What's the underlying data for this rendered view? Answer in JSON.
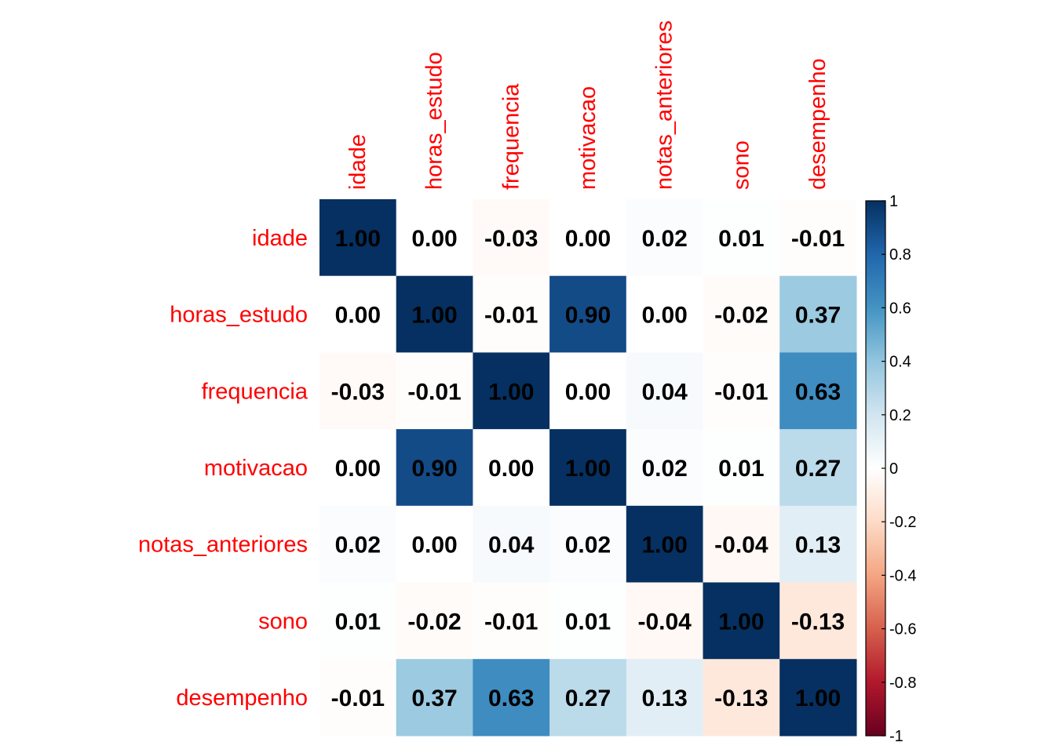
{
  "chart_data": {
    "type": "heatmap",
    "variables": [
      "idade",
      "horas_estudo",
      "frequencia",
      "motivacao",
      "notas_anteriores",
      "sono",
      "desempenho"
    ],
    "matrix": [
      [
        1.0,
        0.0,
        -0.03,
        0.0,
        0.02,
        0.01,
        -0.01
      ],
      [
        0.0,
        1.0,
        -0.01,
        0.9,
        0.0,
        -0.02,
        0.37
      ],
      [
        -0.03,
        -0.01,
        1.0,
        0.0,
        0.04,
        -0.01,
        0.63
      ],
      [
        0.0,
        0.9,
        0.0,
        1.0,
        0.02,
        0.01,
        0.27
      ],
      [
        0.02,
        0.0,
        0.04,
        0.02,
        1.0,
        -0.04,
        0.13
      ],
      [
        0.01,
        -0.02,
        -0.01,
        0.01,
        -0.04,
        1.0,
        -0.13
      ],
      [
        -0.01,
        0.37,
        0.63,
        0.27,
        0.13,
        -0.13,
        1.0
      ]
    ],
    "value_labels": [
      [
        "1.00",
        "0.00",
        "-0.03",
        "0.00",
        "0.02",
        "0.01",
        "-0.01"
      ],
      [
        "0.00",
        "1.00",
        "-0.01",
        "0.90",
        "0.00",
        "-0.02",
        "0.37"
      ],
      [
        "-0.03",
        "-0.01",
        "1.00",
        "0.00",
        "0.04",
        "-0.01",
        "0.63"
      ],
      [
        "0.00",
        "0.90",
        "0.00",
        "1.00",
        "0.02",
        "0.01",
        "0.27"
      ],
      [
        "0.02",
        "0.00",
        "0.04",
        "0.02",
        "1.00",
        "-0.04",
        "0.13"
      ],
      [
        "0.01",
        "-0.02",
        "-0.01",
        "0.01",
        "-0.04",
        "1.00",
        "-0.13"
      ],
      [
        "-0.01",
        "0.37",
        "0.63",
        "0.27",
        "0.13",
        "-0.13",
        "1.00"
      ]
    ],
    "color_scale": {
      "range": [
        -1,
        1
      ],
      "stops": [
        "#67001F",
        "#B2182B",
        "#D6604D",
        "#F4A582",
        "#FDDBC7",
        "#FFFFFF",
        "#D1E5F0",
        "#92C5DE",
        "#4393C3",
        "#2166AC",
        "#053061"
      ],
      "ticks": [
        1,
        0.8,
        0.6,
        0.4,
        0.2,
        0,
        -0.2,
        -0.4,
        -0.6,
        -0.8,
        -1
      ],
      "tick_labels": [
        "1",
        "0.8",
        "0.6",
        "0.4",
        "0.2",
        "0",
        "-0.2",
        "-0.4",
        "-0.6",
        "-0.8",
        "-1"
      ]
    },
    "label_color": "#ff0000",
    "text_color": "#000000"
  }
}
